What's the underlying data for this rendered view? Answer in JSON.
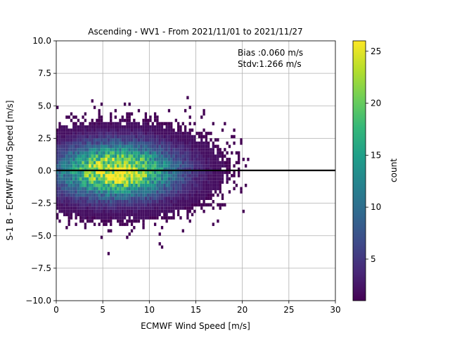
{
  "chart_data": {
    "type": "heatmap",
    "title": "Ascending - WV1 - From 2021/11/01 to 2021/11/27",
    "xlabel": "ECMWF Wind Speed [m/s]",
    "ylabel": "S-1 B - ECMWF Wind Speed [m/s]",
    "xlim": [
      0,
      30
    ],
    "ylim": [
      -10,
      10
    ],
    "xticks": [
      "0",
      "5",
      "10",
      "15",
      "20",
      "25",
      "30"
    ],
    "yticks": [
      "−10.0",
      "−7.5",
      "−5.0",
      "−2.5",
      "0.0",
      "2.5",
      "5.0",
      "7.5",
      "10.0"
    ],
    "grid": true,
    "reference_line_y": 0,
    "annotations": [
      "Bias :0.060 m/s",
      "Stdv:1.266 m/s"
    ],
    "colorbar": {
      "label": "count",
      "ticks": [
        "5",
        "10",
        "15",
        "20",
        "25"
      ],
      "range": [
        1,
        26
      ],
      "colormap": [
        "#440154",
        "#482878",
        "#3e4a89",
        "#31688e",
        "#26828e",
        "#1f9e89",
        "#35b779",
        "#6ece58",
        "#b5de2b",
        "#fde725"
      ]
    },
    "density": {
      "bin_width": 0.25,
      "bin_height": 0.25,
      "center_x": 6.5,
      "center_y": 0.0,
      "peak_count": 25
    }
  }
}
